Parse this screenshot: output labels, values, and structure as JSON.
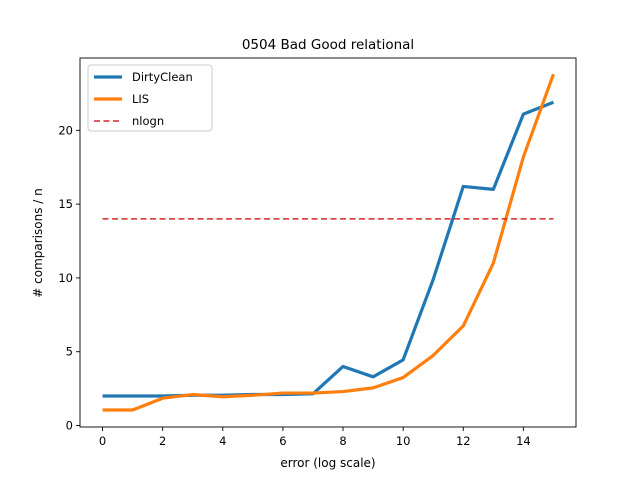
{
  "chart_data": {
    "type": "line",
    "title": "0504 Bad Good relational",
    "xlabel": "error (log scale)",
    "ylabel": "# comparisons / n",
    "xlim": [
      -0.75,
      15.75
    ],
    "ylim": [
      -0.1,
      24.9
    ],
    "xticks": [
      0,
      2,
      4,
      6,
      8,
      10,
      12,
      14
    ],
    "yticks": [
      0,
      5,
      10,
      15,
      20
    ],
    "grid": false,
    "legend_position": "upper left",
    "x": [
      0,
      1,
      2,
      3,
      4,
      5,
      6,
      7,
      8,
      9,
      10,
      11,
      12,
      13,
      14,
      15
    ],
    "series": [
      {
        "name": "DirtyClean",
        "color": "#1f77b4",
        "style": "solid",
        "values": [
          2.0,
          2.0,
          2.0,
          2.05,
          2.05,
          2.1,
          2.1,
          2.15,
          4.0,
          3.3,
          4.45,
          9.9,
          16.2,
          16.0,
          21.1,
          21.9
        ]
      },
      {
        "name": "LIS",
        "color": "#ff7f0e",
        "style": "solid",
        "values": [
          1.05,
          1.05,
          1.85,
          2.1,
          1.95,
          2.05,
          2.2,
          2.2,
          2.3,
          2.55,
          3.25,
          4.75,
          6.75,
          11.0,
          18.2,
          23.8
        ]
      },
      {
        "name": "nlogn",
        "color": "#d62728",
        "style": "dashed",
        "x": [
          0,
          15
        ],
        "values": [
          14.0,
          14.0
        ]
      }
    ]
  }
}
